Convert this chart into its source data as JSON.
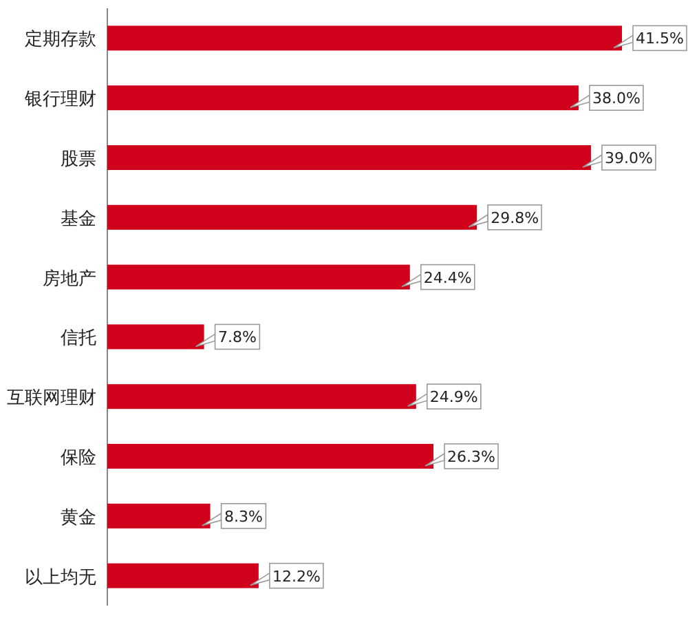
{
  "chart_data": {
    "type": "bar",
    "orientation": "horizontal",
    "categories": [
      "定期存款",
      "银行理财",
      "股票",
      "基金",
      "房地产",
      "信托",
      "互联网理财",
      "保险",
      "黄金",
      "以上均无"
    ],
    "values": [
      41.5,
      38.0,
      39.0,
      29.8,
      24.4,
      7.8,
      24.9,
      26.3,
      8.3,
      12.2
    ],
    "value_labels": [
      "41.5%",
      "38.0%",
      "39.0%",
      "29.8%",
      "24.4%",
      "7.8%",
      "24.9%",
      "26.3%",
      "8.3%",
      "12.2%"
    ],
    "color": "#d0021b"
  }
}
